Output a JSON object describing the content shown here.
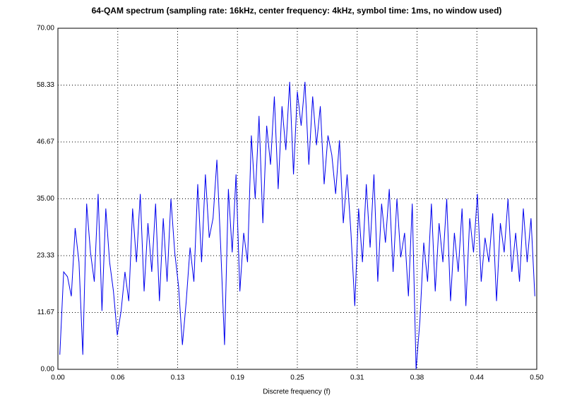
{
  "chart_data": {
    "type": "line",
    "title": "64-QAM spectrum (sampling rate: 16kHz, center frequency: 4kHz, symbol time: 1ms, no window used)",
    "xlabel": "Discrete frequency (f)",
    "grid": true,
    "xlim": [
      0,
      0.5
    ],
    "ylim": [
      0,
      70
    ],
    "xticks": [
      {
        "value": 0,
        "label": "0.00"
      },
      {
        "value": 0.0625,
        "label": "0.06"
      },
      {
        "value": 0.125,
        "label": "0.13"
      },
      {
        "value": 0.1875,
        "label": "0.19"
      },
      {
        "value": 0.25,
        "label": "0.25"
      },
      {
        "value": 0.3125,
        "label": "0.31"
      },
      {
        "value": 0.375,
        "label": "0.38"
      },
      {
        "value": 0.4375,
        "label": "0.44"
      },
      {
        "value": 0.5,
        "label": "0.50"
      }
    ],
    "yticks": [
      {
        "value": 0,
        "label": "0.00"
      },
      {
        "value": 11.666666666666666,
        "label": "11.67"
      },
      {
        "value": 23.333333333333332,
        "label": "23.33"
      },
      {
        "value": 35,
        "label": "35.00"
      },
      {
        "value": 46.666666666666664,
        "label": "46.67"
      },
      {
        "value": 58.333333333333336,
        "label": "58.33"
      },
      {
        "value": 70,
        "label": "70.00"
      }
    ],
    "x": [
      0.002,
      0.006,
      0.01,
      0.014,
      0.018,
      0.022,
      0.026,
      0.03,
      0.034,
      0.038,
      0.042,
      0.046,
      0.05,
      0.054,
      0.058,
      0.062,
      0.066,
      0.07,
      0.074,
      0.078,
      0.082,
      0.086,
      0.09,
      0.094,
      0.098,
      0.102,
      0.106,
      0.11,
      0.114,
      0.118,
      0.122,
      0.126,
      0.13,
      0.134,
      0.138,
      0.142,
      0.146,
      0.15,
      0.154,
      0.158,
      0.162,
      0.166,
      0.17,
      0.174,
      0.178,
      0.182,
      0.186,
      0.19,
      0.194,
      0.198,
      0.202,
      0.206,
      0.21,
      0.214,
      0.218,
      0.222,
      0.226,
      0.23,
      0.234,
      0.238,
      0.242,
      0.246,
      0.25,
      0.254,
      0.258,
      0.262,
      0.266,
      0.27,
      0.274,
      0.278,
      0.282,
      0.286,
      0.29,
      0.294,
      0.298,
      0.302,
      0.306,
      0.31,
      0.314,
      0.318,
      0.322,
      0.326,
      0.33,
      0.334,
      0.338,
      0.342,
      0.346,
      0.35,
      0.354,
      0.358,
      0.362,
      0.366,
      0.37,
      0.374,
      0.378,
      0.382,
      0.386,
      0.39,
      0.394,
      0.398,
      0.402,
      0.406,
      0.41,
      0.414,
      0.418,
      0.422,
      0.426,
      0.43,
      0.434,
      0.438,
      0.442,
      0.446,
      0.45,
      0.454,
      0.458,
      0.462,
      0.466,
      0.47,
      0.474,
      0.478,
      0.482,
      0.486,
      0.49,
      0.494,
      0.498
    ],
    "series": [
      {
        "color": "#0000ee",
        "values": [
          3,
          20,
          19,
          15,
          29,
          22,
          3,
          34,
          24,
          18,
          36,
          12,
          33,
          22,
          16,
          7,
          12,
          20,
          14,
          33,
          22,
          36,
          16,
          30,
          20,
          34,
          14,
          31,
          18,
          35,
          24,
          17,
          5,
          14,
          25,
          18,
          38,
          22,
          40,
          27,
          31,
          43,
          25,
          5,
          37,
          24,
          40,
          16,
          28,
          22,
          48,
          35,
          52,
          30,
          50,
          42,
          56,
          37,
          54,
          45,
          59,
          40,
          57,
          50,
          59,
          42,
          56,
          46,
          54,
          38,
          48,
          44,
          36,
          47,
          30,
          40,
          28,
          13,
          33,
          22,
          38,
          25,
          40,
          18,
          34,
          26,
          37,
          20,
          35,
          23,
          28,
          15,
          34,
          0,
          10,
          26,
          18,
          34,
          16,
          30,
          22,
          35,
          14,
          28,
          20,
          33,
          13,
          31,
          24,
          36,
          18,
          27,
          22,
          32,
          14,
          30,
          24,
          35,
          20,
          28,
          18,
          33,
          22,
          31,
          15
        ]
      }
    ]
  }
}
